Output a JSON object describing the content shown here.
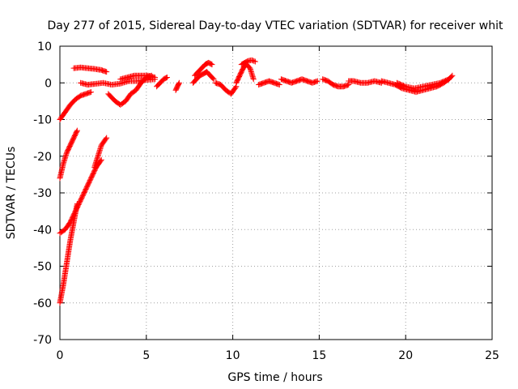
{
  "chart_data": {
    "type": "scatter",
    "title": "Day 277 of 2015, Sidereal Day-to-day VTEC variation (SDTVAR) for receiver whit",
    "xlabel": "GPS time / hours",
    "ylabel": "SDTVAR / TECUs",
    "xlim": [
      0,
      25
    ],
    "ylim": [
      -70,
      10
    ],
    "xticks": [
      0,
      5,
      10,
      15,
      20,
      25
    ],
    "yticks": [
      -70,
      -60,
      -50,
      -40,
      -30,
      -20,
      -10,
      0,
      10
    ],
    "grid": true,
    "marker": "+",
    "color": "#ff0000",
    "segments": [
      {
        "x": [
          0.0,
          0.3,
          0.6,
          0.9,
          1.2,
          1.5,
          1.8
        ],
        "y": [
          -10,
          -8,
          -6,
          -4.5,
          -3.5,
          -3,
          -2.5
        ]
      },
      {
        "x": [
          0.0,
          0.2,
          0.4,
          0.6,
          0.8,
          1.0
        ],
        "y": [
          -26,
          -22,
          -19,
          -17,
          -15,
          -13
        ]
      },
      {
        "x": [
          0.0,
          0.3,
          0.6,
          0.9,
          1.2,
          1.5,
          1.8,
          2.1,
          2.4
        ],
        "y": [
          -41,
          -40,
          -38,
          -35,
          -32,
          -29,
          -26,
          -23,
          -21
        ]
      },
      {
        "x": [
          0.0,
          0.2,
          0.4,
          0.6,
          0.8,
          1.0
        ],
        "y": [
          -60,
          -55,
          -49,
          -43,
          -38,
          -33
        ]
      },
      {
        "x": [
          2.0,
          2.2,
          2.4,
          2.7
        ],
        "y": [
          -23,
          -20,
          -17,
          -15
        ]
      },
      {
        "x": [
          0.8,
          1.2,
          1.6,
          2.0,
          2.4,
          2.7
        ],
        "y": [
          4,
          4.2,
          4,
          3.8,
          3.5,
          3
        ]
      },
      {
        "x": [
          1.2,
          1.6,
          2.0,
          2.5,
          3.0,
          3.5,
          4.0,
          4.5,
          5.0,
          5.5
        ],
        "y": [
          0,
          -0.5,
          -0.3,
          0,
          -0.5,
          -0.2,
          0.5,
          0.5,
          0.8,
          1
        ]
      },
      {
        "x": [
          2.8,
          3.0,
          3.2,
          3.5,
          3.8,
          4.1,
          4.4,
          4.7,
          5.0,
          5.3
        ],
        "y": [
          -3,
          -4,
          -5,
          -6,
          -5,
          -3,
          -2,
          0,
          1.5,
          2
        ]
      },
      {
        "x": [
          3.5,
          3.9,
          4.3,
          4.7,
          5.1,
          5.5
        ],
        "y": [
          1,
          1.5,
          2,
          2,
          2,
          1.5
        ]
      },
      {
        "x": [
          5.6,
          5.8,
          6.0,
          6.2
        ],
        "y": [
          -1,
          0,
          1,
          1.5
        ]
      },
      {
        "x": [
          6.7,
          6.8,
          6.9
        ],
        "y": [
          -2,
          -1,
          0
        ]
      },
      {
        "x": [
          7.7,
          7.9,
          8.1,
          8.3,
          8.5,
          8.7,
          8.9
        ],
        "y": [
          0,
          1,
          2,
          2.5,
          3,
          2,
          1
        ]
      },
      {
        "x": [
          7.8,
          8.0,
          8.2,
          8.4,
          8.6,
          8.8
        ],
        "y": [
          2,
          3,
          4,
          5,
          5.5,
          5
        ]
      },
      {
        "x": [
          9.0,
          9.3,
          9.6,
          9.9,
          10.2
        ],
        "y": [
          0,
          -0.5,
          -2,
          -3,
          -1
        ]
      },
      {
        "x": [
          10.2,
          10.4,
          10.6,
          10.8,
          11.0,
          11.2
        ],
        "y": [
          0,
          2,
          4,
          5,
          4,
          1
        ]
      },
      {
        "x": [
          10.5,
          10.7,
          10.9,
          11.1,
          11.3
        ],
        "y": [
          5,
          5.5,
          6,
          6.2,
          5.8
        ]
      },
      {
        "x": [
          11.5,
          11.8,
          12.1,
          12.4,
          12.7
        ],
        "y": [
          -0.5,
          0,
          0.5,
          0,
          -0.5
        ]
      },
      {
        "x": [
          12.8,
          13.1,
          13.4,
          13.7,
          14.0,
          14.3,
          14.6,
          14.9
        ],
        "y": [
          1,
          0.5,
          0,
          0.5,
          1,
          0.5,
          0,
          0.5
        ]
      },
      {
        "x": [
          15.2,
          15.5,
          15.8,
          16.1,
          16.4,
          16.7
        ],
        "y": [
          1,
          0.5,
          -0.5,
          -1,
          -1,
          -0.5
        ]
      },
      {
        "x": [
          16.7,
          17.0,
          17.4,
          17.8,
          18.2,
          18.6
        ],
        "y": [
          0.5,
          0.5,
          0,
          0,
          0.5,
          0
        ]
      },
      {
        "x": [
          18.6,
          19.0,
          19.4,
          19.8,
          20.2,
          20.6,
          21.0,
          21.4,
          21.8,
          22.2,
          22.5,
          22.7
        ],
        "y": [
          0.5,
          0,
          -0.5,
          -1.5,
          -2,
          -2.5,
          -2,
          -1.5,
          -1,
          0,
          1,
          2
        ]
      },
      {
        "x": [
          19.5,
          20.0,
          20.5,
          21.0,
          21.5,
          22.0,
          22.5
        ],
        "y": [
          0,
          -1,
          -1.5,
          -1,
          -0.5,
          0,
          1
        ]
      }
    ]
  }
}
